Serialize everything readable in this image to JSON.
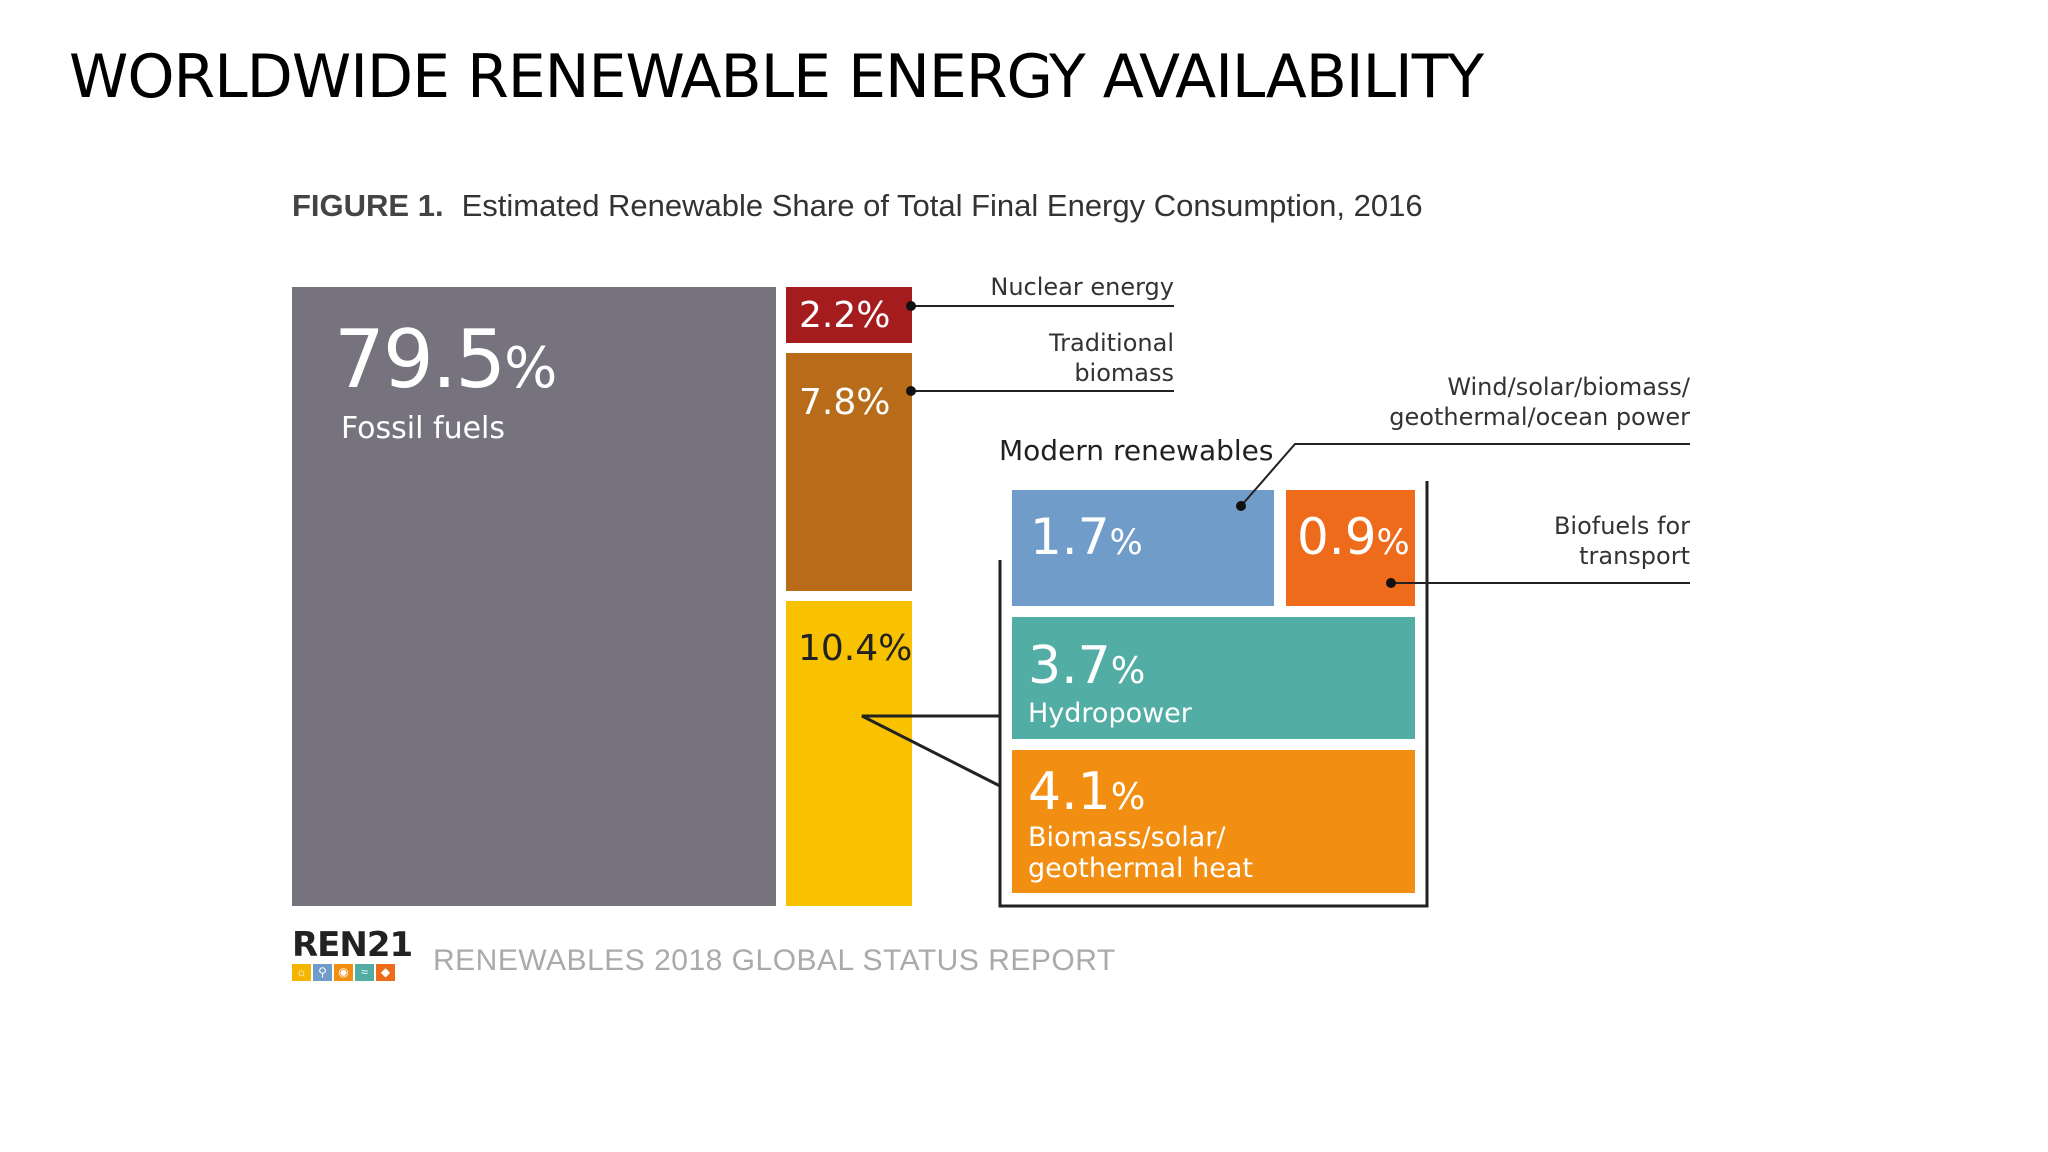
{
  "slide": {
    "title": "WORLDWIDE RENEWABLE ENERGY AVAILABILITY"
  },
  "figure": {
    "label": "FIGURE 1.",
    "caption": "Estimated Renewable Share of Total Final Energy Consumption, 2016"
  },
  "chart_data": {
    "type": "treemap",
    "title": "Estimated Renewable Share of Total Final Energy Consumption, 2016",
    "unit": "%",
    "segments": [
      {
        "name": "Fossil fuels",
        "value": 79.5,
        "display": "79.5",
        "color": "#76737f"
      },
      {
        "name": "Nuclear energy",
        "value": 2.2,
        "display": "2.2%",
        "color": "#a51c1f"
      },
      {
        "name": "Traditional biomass",
        "value": 7.8,
        "display": "7.8%",
        "color": "#b86b19"
      },
      {
        "name": "Modern renewables",
        "value": 10.4,
        "display": "10.4%",
        "color": "#f9c200",
        "children": [
          {
            "name": "Wind/solar/biomass/ geothermal/ocean power",
            "value": 1.7,
            "display": "1.7",
            "color": "#6f9cc9"
          },
          {
            "name": "Biofuels for transport",
            "value": 0.9,
            "display": "0.9",
            "color": "#ee6b1c"
          },
          {
            "name": "Hydropower",
            "value": 3.7,
            "display": "3.7",
            "color": "#52aea4"
          },
          {
            "name": "Biomass/solar/ geothermal heat",
            "value": 4.1,
            "display": "4.1",
            "color": "#f28f12"
          }
        ]
      }
    ]
  },
  "labels": {
    "fossil_label": "Fossil fuels",
    "nuclear_callout": "Nuclear energy",
    "trad_callout_1": "Traditional",
    "trad_callout_2": "biomass",
    "modern_heading": "Modern renewables",
    "wind_callout_1": "Wind/solar/biomass/",
    "wind_callout_2": "geothermal/ocean power",
    "biofuel_callout_1": "Biofuels for",
    "biofuel_callout_2": "transport",
    "hydro_label": "Hydropower",
    "heat_label_1": "Biomass/solar/",
    "heat_label_2": "geothermal heat",
    "percent_sign": "%"
  },
  "footer": {
    "logo_text": "REN21",
    "report_title": "RENEWABLES 2018 GLOBAL STATUS REPORT"
  },
  "colors": {
    "fossil": "#76737f",
    "nuclear": "#a51c1f",
    "traditional": "#b86b19",
    "modern": "#f9c200",
    "wind": "#6f9cc9",
    "biofuels": "#ee6b1c",
    "hydro": "#52aea4",
    "heat": "#f28f12"
  }
}
